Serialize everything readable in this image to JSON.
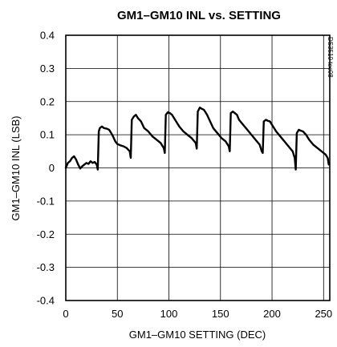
{
  "chart_data": {
    "type": "line",
    "title": "GM1–GM10 INL vs. SETTING",
    "xlabel": "GM1–GM10 SETTING (DEC)",
    "ylabel": "GM1–GM10 INL (LSB)",
    "doc_id": "DS3510 toc08",
    "xlim": [
      0,
      256
    ],
    "ylim": [
      -0.4,
      0.4
    ],
    "x_ticks": [
      0,
      50,
      100,
      150,
      200,
      250
    ],
    "y_ticks": [
      0.4,
      0.3,
      0.2,
      0.1,
      0,
      -0.1,
      -0.2,
      -0.3,
      -0.4
    ],
    "x_tick_labels": [
      "0",
      "50",
      "100",
      "150",
      "200",
      "250"
    ],
    "y_tick_labels": [
      "0.4",
      "0.3",
      "0.2",
      "0.1",
      "0",
      "-0.1",
      "-0.2",
      "-0.3",
      "-0.4"
    ],
    "grid": true,
    "series": [
      {
        "x": [
          0,
          2,
          4,
          6,
          8,
          10,
          12,
          14,
          16,
          18,
          20,
          22,
          24,
          26,
          28,
          30,
          31,
          32,
          33,
          35,
          37,
          40,
          42,
          45,
          48,
          50,
          53,
          56,
          59,
          62,
          63,
          64,
          66,
          68,
          70,
          73,
          76,
          80,
          84,
          88,
          92,
          95,
          96,
          97,
          99,
          101,
          103,
          106,
          110,
          114,
          118,
          122,
          126,
          127,
          128,
          130,
          132,
          134,
          137,
          140,
          143,
          147,
          151,
          155,
          158,
          159,
          160,
          162,
          164,
          166,
          168,
          172,
          176,
          180,
          184,
          188,
          190,
          191,
          192,
          194,
          196,
          198,
          200,
          204,
          208,
          212,
          216,
          220,
          222,
          223,
          224,
          226,
          228,
          230,
          233,
          236,
          240,
          244,
          248,
          252,
          254,
          255
        ],
        "values": [
          0.0,
          0.015,
          0.02,
          0.03,
          0.035,
          0.025,
          0.01,
          -0.002,
          0.005,
          0.01,
          0.015,
          0.012,
          0.02,
          0.015,
          0.018,
          0.01,
          -0.005,
          0.11,
          0.12,
          0.125,
          0.12,
          0.118,
          0.115,
          0.1,
          0.08,
          0.072,
          0.068,
          0.065,
          0.06,
          0.05,
          0.03,
          0.145,
          0.155,
          0.16,
          0.15,
          0.14,
          0.12,
          0.11,
          0.095,
          0.085,
          0.075,
          0.06,
          0.045,
          0.16,
          0.168,
          0.165,
          0.16,
          0.145,
          0.125,
          0.11,
          0.1,
          0.09,
          0.075,
          0.058,
          0.17,
          0.182,
          0.178,
          0.175,
          0.16,
          0.14,
          0.12,
          0.105,
          0.09,
          0.08,
          0.065,
          0.05,
          0.165,
          0.17,
          0.165,
          0.16,
          0.145,
          0.13,
          0.115,
          0.1,
          0.085,
          0.07,
          0.05,
          0.045,
          0.14,
          0.145,
          0.142,
          0.14,
          0.13,
          0.11,
          0.095,
          0.08,
          0.065,
          0.05,
          0.03,
          -0.005,
          0.105,
          0.115,
          0.112,
          0.11,
          0.1,
          0.085,
          0.07,
          0.06,
          0.05,
          0.04,
          0.03,
          0.01
        ]
      }
    ]
  }
}
